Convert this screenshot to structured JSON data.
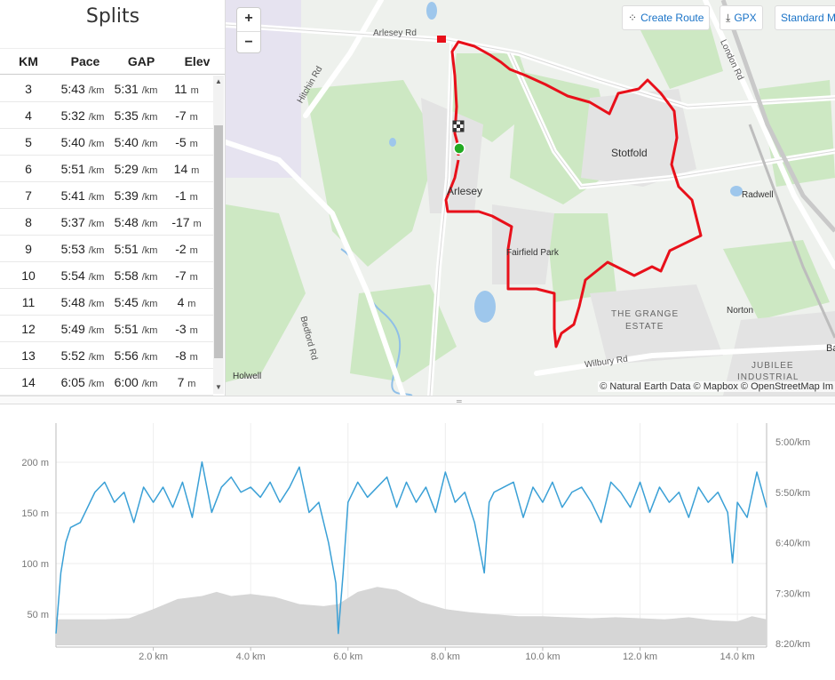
{
  "splits": {
    "title": "Splits",
    "headers": {
      "km": "KM",
      "pace": "Pace",
      "gap": "GAP",
      "elev": "Elev"
    },
    "pace_unit": "/km",
    "elev_unit": "m",
    "rows": [
      {
        "km": "3",
        "pace": "5:43",
        "gap": "5:31",
        "elev": "11"
      },
      {
        "km": "4",
        "pace": "5:32",
        "gap": "5:35",
        "elev": "-7"
      },
      {
        "km": "5",
        "pace": "5:40",
        "gap": "5:40",
        "elev": "-5"
      },
      {
        "km": "6",
        "pace": "5:51",
        "gap": "5:29",
        "elev": "14"
      },
      {
        "km": "7",
        "pace": "5:41",
        "gap": "5:39",
        "elev": "-1"
      },
      {
        "km": "8",
        "pace": "5:37",
        "gap": "5:48",
        "elev": "-17"
      },
      {
        "km": "9",
        "pace": "5:53",
        "gap": "5:51",
        "elev": "-2"
      },
      {
        "km": "10",
        "pace": "5:54",
        "gap": "5:58",
        "elev": "-7"
      },
      {
        "km": "11",
        "pace": "5:48",
        "gap": "5:45",
        "elev": "4"
      },
      {
        "km": "12",
        "pace": "5:49",
        "gap": "5:51",
        "elev": "-3"
      },
      {
        "km": "13",
        "pace": "5:52",
        "gap": "5:56",
        "elev": "-8"
      },
      {
        "km": "14",
        "pace": "6:05",
        "gap": "6:00",
        "elev": "7"
      }
    ]
  },
  "map": {
    "zoom_in": "+",
    "zoom_out": "−",
    "buttons": {
      "create_route": "Create Route",
      "gpx": "GPX",
      "style": "Standard M"
    },
    "icons": {
      "create_route": "route-icon",
      "gpx": "download-icon"
    },
    "labels": {
      "arlesey_rd": "Arlesey Rd",
      "hitchin_rd": "Hitchin Rd",
      "london_rd": "London Rd",
      "stotfold": "Stotfold",
      "arlesey": "Arlesey",
      "radwell": "Radwell",
      "fairfield_park": "Fairfield Park",
      "grange_1": "THE GRANGE",
      "grange_2": "ESTATE",
      "norton": "Norton",
      "bedford_rd": "Bedford Rd",
      "holwell": "Holwell",
      "wilbury_rd": "Wilbury Rd",
      "jubilee": "JUBILEE",
      "industrial": "INDUSTRIAL",
      "edge_ba": "Ba"
    },
    "attribution": "© Natural Earth Data © Mapbox © OpenStreetMap Im",
    "route_color": "#e8101a",
    "start_color": "#22aa22"
  },
  "chart_data": {
    "type": "line",
    "x_unit": "km",
    "x_ticks": [
      "2.0 km",
      "4.0 km",
      "6.0 km",
      "8.0 km",
      "10.0 km",
      "12.0 km",
      "14.0 km"
    ],
    "x_tick_values": [
      2,
      4,
      6,
      8,
      10,
      12,
      14
    ],
    "xlim": [
      0,
      14.6
    ],
    "y_left_ticks": [
      "50 m",
      "100 m",
      "150 m",
      "200 m"
    ],
    "y_left_values": [
      50,
      100,
      150,
      200
    ],
    "y_right_ticks": [
      "5:00/km",
      "5:50/km",
      "6:40/km",
      "7:30/km",
      "8:20/km"
    ],
    "y_right_values": [
      300,
      350,
      400,
      450,
      500
    ],
    "grid": true,
    "elevation_color": "#d6d6d6",
    "pace_color": "#3aa0d6",
    "series": [
      {
        "kind": "elevation",
        "x": [
          0,
          0.5,
          1,
          1.5,
          2,
          2.5,
          3,
          3.3,
          3.6,
          4,
          4.5,
          5,
          5.5,
          5.8,
          6.2,
          6.6,
          7,
          7.5,
          8,
          8.5,
          9,
          9.5,
          10,
          10.5,
          11,
          11.5,
          12,
          12.5,
          13,
          13.5,
          14,
          14.3,
          14.6
        ],
        "values": [
          45,
          45,
          45,
          46,
          55,
          65,
          68,
          72,
          68,
          70,
          67,
          60,
          58,
          60,
          72,
          77,
          74,
          62,
          55,
          52,
          50,
          48,
          48,
          47,
          46,
          47,
          46,
          45,
          47,
          44,
          43,
          48,
          45
        ]
      },
      {
        "kind": "pace",
        "x": [
          0,
          0.1,
          0.2,
          0.3,
          0.5,
          0.8,
          1.0,
          1.2,
          1.4,
          1.6,
          1.8,
          2.0,
          2.2,
          2.4,
          2.6,
          2.8,
          3.0,
          3.2,
          3.4,
          3.6,
          3.8,
          4.0,
          4.2,
          4.4,
          4.6,
          4.8,
          5.0,
          5.2,
          5.4,
          5.6,
          5.75,
          5.8,
          5.9,
          6.0,
          6.2,
          6.4,
          6.6,
          6.8,
          7.0,
          7.2,
          7.4,
          7.6,
          7.8,
          8.0,
          8.2,
          8.4,
          8.6,
          8.8,
          8.9,
          9.0,
          9.2,
          9.4,
          9.6,
          9.8,
          10.0,
          10.2,
          10.4,
          10.6,
          10.8,
          11.0,
          11.2,
          11.4,
          11.6,
          11.8,
          12.0,
          12.2,
          12.4,
          12.6,
          12.8,
          13.0,
          13.2,
          13.4,
          13.6,
          13.8,
          13.9,
          14.0,
          14.2,
          14.4,
          14.6
        ],
        "values": [
          490,
          430,
          400,
          385,
          380,
          350,
          340,
          360,
          350,
          380,
          345,
          360,
          345,
          365,
          340,
          375,
          320,
          370,
          345,
          335,
          350,
          345,
          355,
          340,
          360,
          345,
          325,
          370,
          360,
          400,
          440,
          490,
          430,
          360,
          340,
          355,
          345,
          335,
          365,
          340,
          360,
          345,
          370,
          330,
          360,
          350,
          380,
          430,
          360,
          350,
          345,
          340,
          375,
          345,
          360,
          340,
          365,
          350,
          345,
          360,
          380,
          340,
          350,
          365,
          340,
          370,
          345,
          360,
          350,
          375,
          345,
          360,
          350,
          370,
          420,
          360,
          375,
          330,
          365
        ]
      }
    ]
  }
}
